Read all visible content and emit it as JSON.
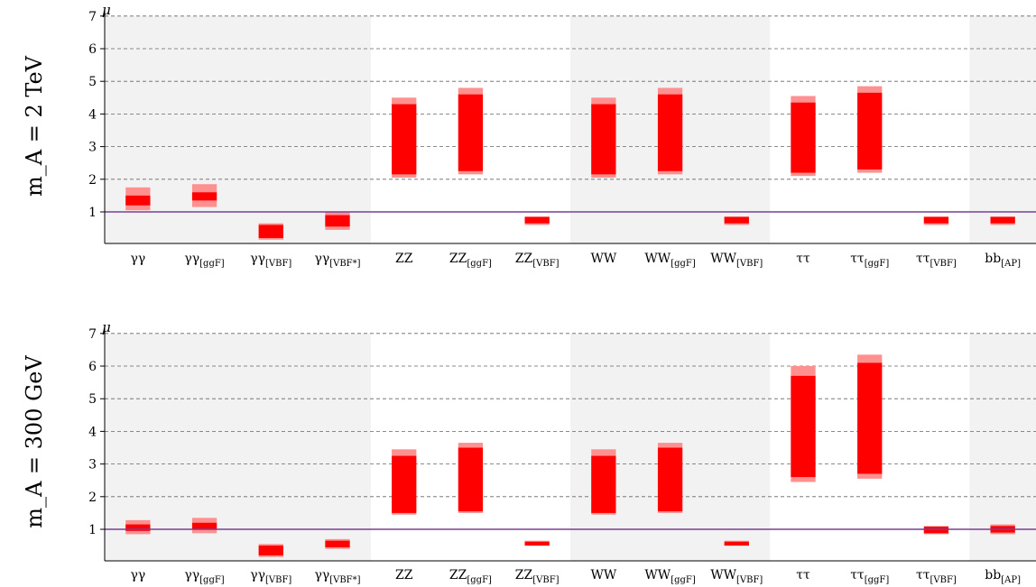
{
  "chart_data": [
    {
      "type": "bar",
      "panel_label": "m_A = 2 TeV",
      "ylabel": "μ",
      "ylim": [
        0.3,
        7
      ],
      "yticks": [
        1,
        2,
        3,
        4,
        5,
        6,
        7
      ],
      "reference_line": 1,
      "grid": "dashed horizontal",
      "shaded_groups": [
        [
          0,
          3
        ],
        [
          7,
          9
        ],
        [
          13,
          13
        ]
      ],
      "categories": [
        {
          "base": "γγ",
          "sub": ""
        },
        {
          "base": "γγ",
          "sub": "[ggF]"
        },
        {
          "base": "γγ",
          "sub": "[VBF]"
        },
        {
          "base": "γγ",
          "sub": "[VBF*]"
        },
        {
          "base": "ZZ",
          "sub": ""
        },
        {
          "base": "ZZ",
          "sub": "[ggF]"
        },
        {
          "base": "ZZ",
          "sub": "[VBF]"
        },
        {
          "base": "WW",
          "sub": ""
        },
        {
          "base": "WW",
          "sub": "[ggF]"
        },
        {
          "base": "WW",
          "sub": "[VBF]"
        },
        {
          "base": "ττ",
          "sub": ""
        },
        {
          "base": "ττ",
          "sub": "[ggF]"
        },
        {
          "base": "ττ",
          "sub": "[VBF]"
        },
        {
          "base": "bb",
          "sub": "[AP]"
        }
      ],
      "series": [
        {
          "color": "#ff9090",
          "ranges": [
            [
              1.05,
              1.75
            ],
            [
              1.15,
              1.85
            ],
            [
              0.15,
              0.65
            ],
            [
              0.45,
              1.0
            ],
            [
              2.05,
              4.5
            ],
            [
              2.15,
              4.8
            ],
            [
              0.6,
              0.85
            ],
            [
              2.05,
              4.5
            ],
            [
              2.15,
              4.8
            ],
            [
              0.6,
              0.85
            ],
            [
              2.1,
              4.55
            ],
            [
              2.2,
              4.85
            ],
            [
              0.6,
              0.85
            ],
            [
              0.6,
              0.85
            ]
          ]
        },
        {
          "color": "#ff0000",
          "ranges": [
            [
              1.2,
              1.5
            ],
            [
              1.35,
              1.6
            ],
            [
              0.2,
              0.6
            ],
            [
              0.55,
              0.9
            ],
            [
              2.15,
              4.3
            ],
            [
              2.25,
              4.6
            ],
            [
              0.65,
              0.85
            ],
            [
              2.15,
              4.3
            ],
            [
              2.25,
              4.6
            ],
            [
              0.65,
              0.85
            ],
            [
              2.2,
              4.35
            ],
            [
              2.3,
              4.65
            ],
            [
              0.65,
              0.85
            ],
            [
              0.65,
              0.85
            ]
          ]
        }
      ]
    },
    {
      "type": "bar",
      "panel_label": "m_A = 300 GeV",
      "ylabel": "μ",
      "ylim": [
        0.3,
        7
      ],
      "yticks": [
        1,
        2,
        3,
        4,
        5,
        6,
        7
      ],
      "reference_line": 1,
      "grid": "dashed horizontal",
      "shaded_groups": [
        [
          0,
          3
        ],
        [
          7,
          9
        ],
        [
          13,
          13
        ]
      ],
      "categories": [
        {
          "base": "γγ",
          "sub": ""
        },
        {
          "base": "γγ",
          "sub": "[ggF]"
        },
        {
          "base": "γγ",
          "sub": "[VBF]"
        },
        {
          "base": "γγ",
          "sub": "[VBF*]"
        },
        {
          "base": "ZZ",
          "sub": ""
        },
        {
          "base": "ZZ",
          "sub": "[ggF]"
        },
        {
          "base": "ZZ",
          "sub": "[VBF]"
        },
        {
          "base": "WW",
          "sub": ""
        },
        {
          "base": "WW",
          "sub": "[ggF]"
        },
        {
          "base": "WW",
          "sub": "[VBF]"
        },
        {
          "base": "ττ",
          "sub": ""
        },
        {
          "base": "ττ",
          "sub": "[ggF]"
        },
        {
          "base": "ττ",
          "sub": "[VBF]"
        },
        {
          "base": "bb",
          "sub": "[AP]"
        }
      ],
      "series": [
        {
          "color": "#ff9090",
          "ranges": [
            [
              0.85,
              1.28
            ],
            [
              0.88,
              1.35
            ],
            [
              0.15,
              0.55
            ],
            [
              0.4,
              0.7
            ],
            [
              1.45,
              3.45
            ],
            [
              1.5,
              3.65
            ],
            [
              0.5,
              0.65
            ],
            [
              1.45,
              3.45
            ],
            [
              1.5,
              3.65
            ],
            [
              0.5,
              0.65
            ],
            [
              2.45,
              6.0
            ],
            [
              2.55,
              6.35
            ],
            [
              0.85,
              1.1
            ],
            [
              0.85,
              1.15
            ]
          ]
        },
        {
          "color": "#ff0000",
          "ranges": [
            [
              0.95,
              1.15
            ],
            [
              1.0,
              1.2
            ],
            [
              0.2,
              0.5
            ],
            [
              0.45,
              0.65
            ],
            [
              1.5,
              3.25
            ],
            [
              1.55,
              3.5
            ],
            [
              0.5,
              0.62
            ],
            [
              1.5,
              3.25
            ],
            [
              1.55,
              3.5
            ],
            [
              0.5,
              0.62
            ],
            [
              2.6,
              5.7
            ],
            [
              2.7,
              6.1
            ],
            [
              0.88,
              1.08
            ],
            [
              0.9,
              1.1
            ]
          ]
        }
      ]
    }
  ],
  "colors": {
    "shade": "#f2f2f2",
    "reference_line": "#7a3f94",
    "grid": "#666666"
  }
}
